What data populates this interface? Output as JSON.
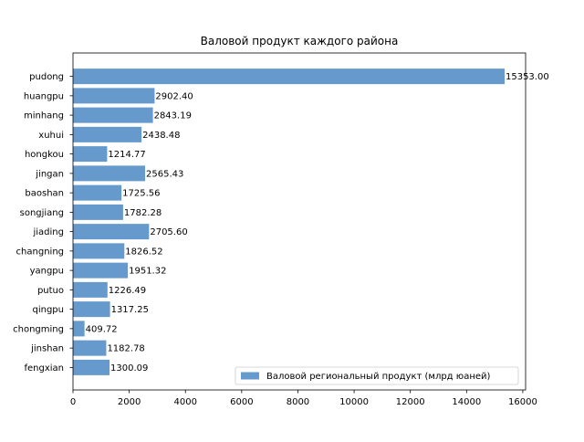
{
  "chart_data": {
    "type": "bar",
    "orientation": "horizontal",
    "title": "Валовой продукт каждого района",
    "xlabel": "",
    "ylabel": "",
    "categories": [
      "pudong",
      "huangpu",
      "minhang",
      "xuhui",
      "hongkou",
      "jingan",
      "baoshan",
      "songjiang",
      "jiading",
      "changning",
      "yangpu",
      "putuo",
      "qingpu",
      "chongming",
      "jinshan",
      "fengxian"
    ],
    "series": [
      {
        "name": "Валовой региональный продукт (млрд юаней)",
        "values": [
          15353.0,
          2902.4,
          2843.19,
          2438.48,
          1214.77,
          2565.43,
          1725.56,
          1782.28,
          2705.6,
          1826.52,
          1951.32,
          1226.49,
          1317.25,
          409.72,
          1182.78,
          1300.09
        ],
        "value_labels": [
          "15353.00",
          "2902.40",
          "2843.19",
          "2438.48",
          "1214.77",
          "2565.43",
          "1725.56",
          "1782.28",
          "2705.60",
          "1826.52",
          "1951.32",
          "1226.49",
          "1317.25",
          "409.72",
          "1182.78",
          "1300.09"
        ],
        "color": "#6699cc"
      }
    ],
    "xlim": [
      0,
      16100
    ],
    "xticks": [
      "0",
      "2000",
      "4000",
      "6000",
      "8000",
      "10000",
      "12000",
      "14000",
      "16000"
    ],
    "legend_position": "lower-right",
    "grid": false
  }
}
